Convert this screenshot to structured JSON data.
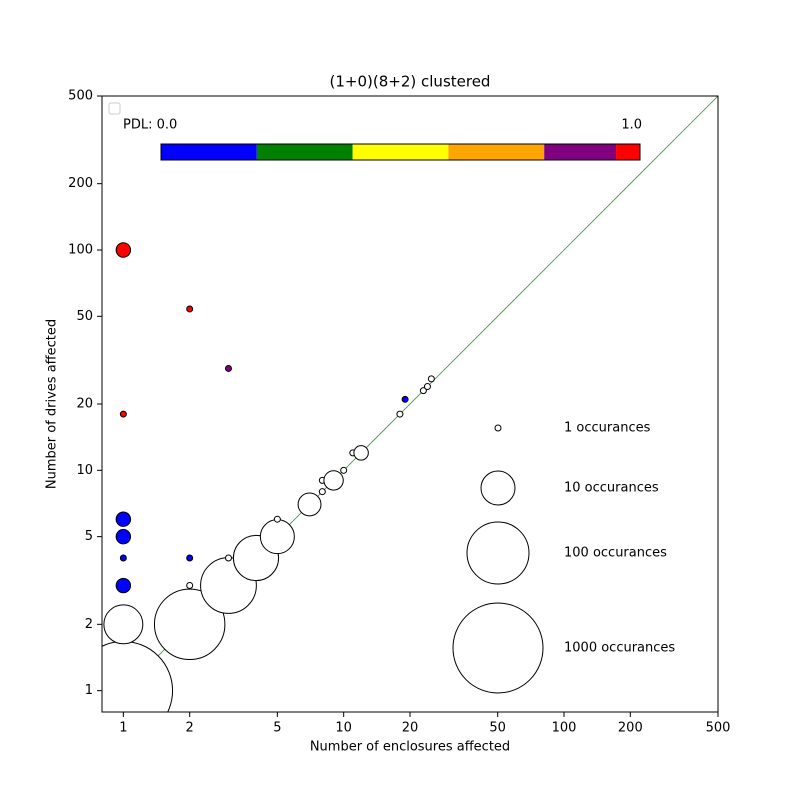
{
  "chart_data": {
    "type": "scatter",
    "title": "(1+0)(8+2) clustered",
    "x_label": "Number of enclosures affected",
    "y_label": "Number of drives affected",
    "xscale": "log",
    "yscale": "log",
    "xlim": [
      0.8,
      500
    ],
    "ylim": [
      0.8,
      500
    ],
    "xticks": [
      1,
      2,
      5,
      10,
      20,
      50,
      100,
      200,
      500
    ],
    "yticks": [
      1,
      2,
      5,
      10,
      20,
      50,
      100,
      200,
      500
    ],
    "diagonal_color": "#2ca02c",
    "x": [
      1,
      1,
      2,
      1,
      1,
      1,
      1,
      1,
      1,
      2,
      3,
      2,
      2,
      3,
      3,
      4,
      5,
      5,
      7,
      8,
      8,
      9,
      10,
      11,
      12,
      18,
      19,
      23,
      24,
      25
    ],
    "y": [
      1,
      2,
      2,
      3,
      4,
      5,
      6,
      18,
      100,
      54,
      29,
      4,
      3,
      3,
      4,
      4,
      5,
      6,
      7,
      8,
      9,
      9,
      10,
      12,
      12,
      18,
      21,
      23,
      24,
      26
    ],
    "sizes": [
      2000,
      15,
      200,
      2,
      1,
      2,
      2,
      1,
      2,
      1,
      1,
      1,
      1,
      60,
      1,
      25,
      10,
      1,
      4,
      1,
      1,
      3,
      1,
      1,
      2,
      1,
      1,
      1,
      1,
      1
    ],
    "colors": [
      "#ffffff",
      "#ffffff",
      "#ffffff",
      "#0000ff",
      "#0000ff",
      "#0000ff",
      "#0000ff",
      "#ff0000",
      "#ff0000",
      "#ff0000",
      "#800080",
      "#0000ff",
      "#ffffff",
      "#ffffff",
      "#ffffff",
      "#ffffff",
      "#ffffff",
      "#ffffff",
      "#ffffff",
      "#ffffff",
      "#ffffff",
      "#ffffff",
      "#ffffff",
      "#ffffff",
      "#ffffff",
      "#ffffff",
      "#0000ff",
      "#ffffff",
      "#ffffff",
      "#ffffff"
    ],
    "size_legend": [
      {
        "value": 1,
        "label": "1 occurances"
      },
      {
        "value": 10,
        "label": "10 occurances"
      },
      {
        "value": 100,
        "label": "100 occurances"
      },
      {
        "value": 1000,
        "label": "1000 occurances"
      }
    ],
    "colorbar": {
      "min_label": "PDL: 0.0",
      "max_label": "1.0",
      "bounds": [
        0,
        0.2,
        0.4,
        0.6,
        0.8,
        0.95,
        1.0
      ],
      "colors": [
        "#0000ff",
        "#008000",
        "#ffff00",
        "#ffa500",
        "#800080",
        "#ff0000"
      ]
    }
  }
}
